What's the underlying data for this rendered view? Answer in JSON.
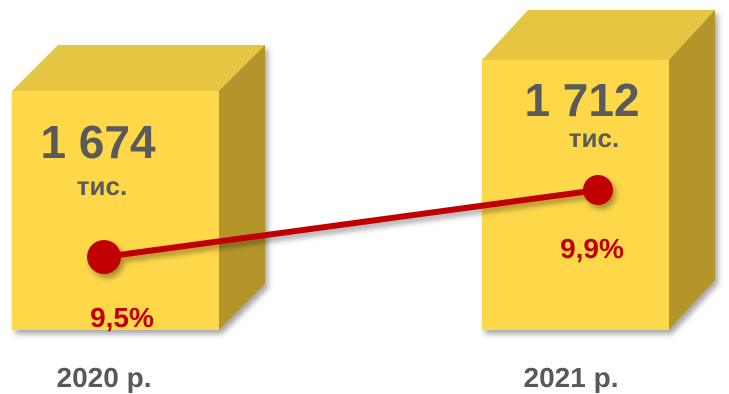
{
  "colors": {
    "box_front": "#ffd84a",
    "box_top": "#e6c542",
    "box_side": "#b3952b",
    "value_text": "#5a5a5a",
    "line": "#c00000",
    "year_text": "#595959"
  },
  "chart_data": {
    "type": "bar",
    "style": "3d-box-with-line",
    "categories": [
      "2020 р.",
      "2021 р."
    ],
    "bars": {
      "values": [
        1674,
        1712
      ],
      "labels": [
        "1 674",
        "1 712"
      ],
      "unit": "тис."
    },
    "line": {
      "values": [
        9.5,
        9.9
      ],
      "labels": [
        "9,5%",
        "9,9%"
      ]
    },
    "grid": false,
    "legend": "none"
  }
}
